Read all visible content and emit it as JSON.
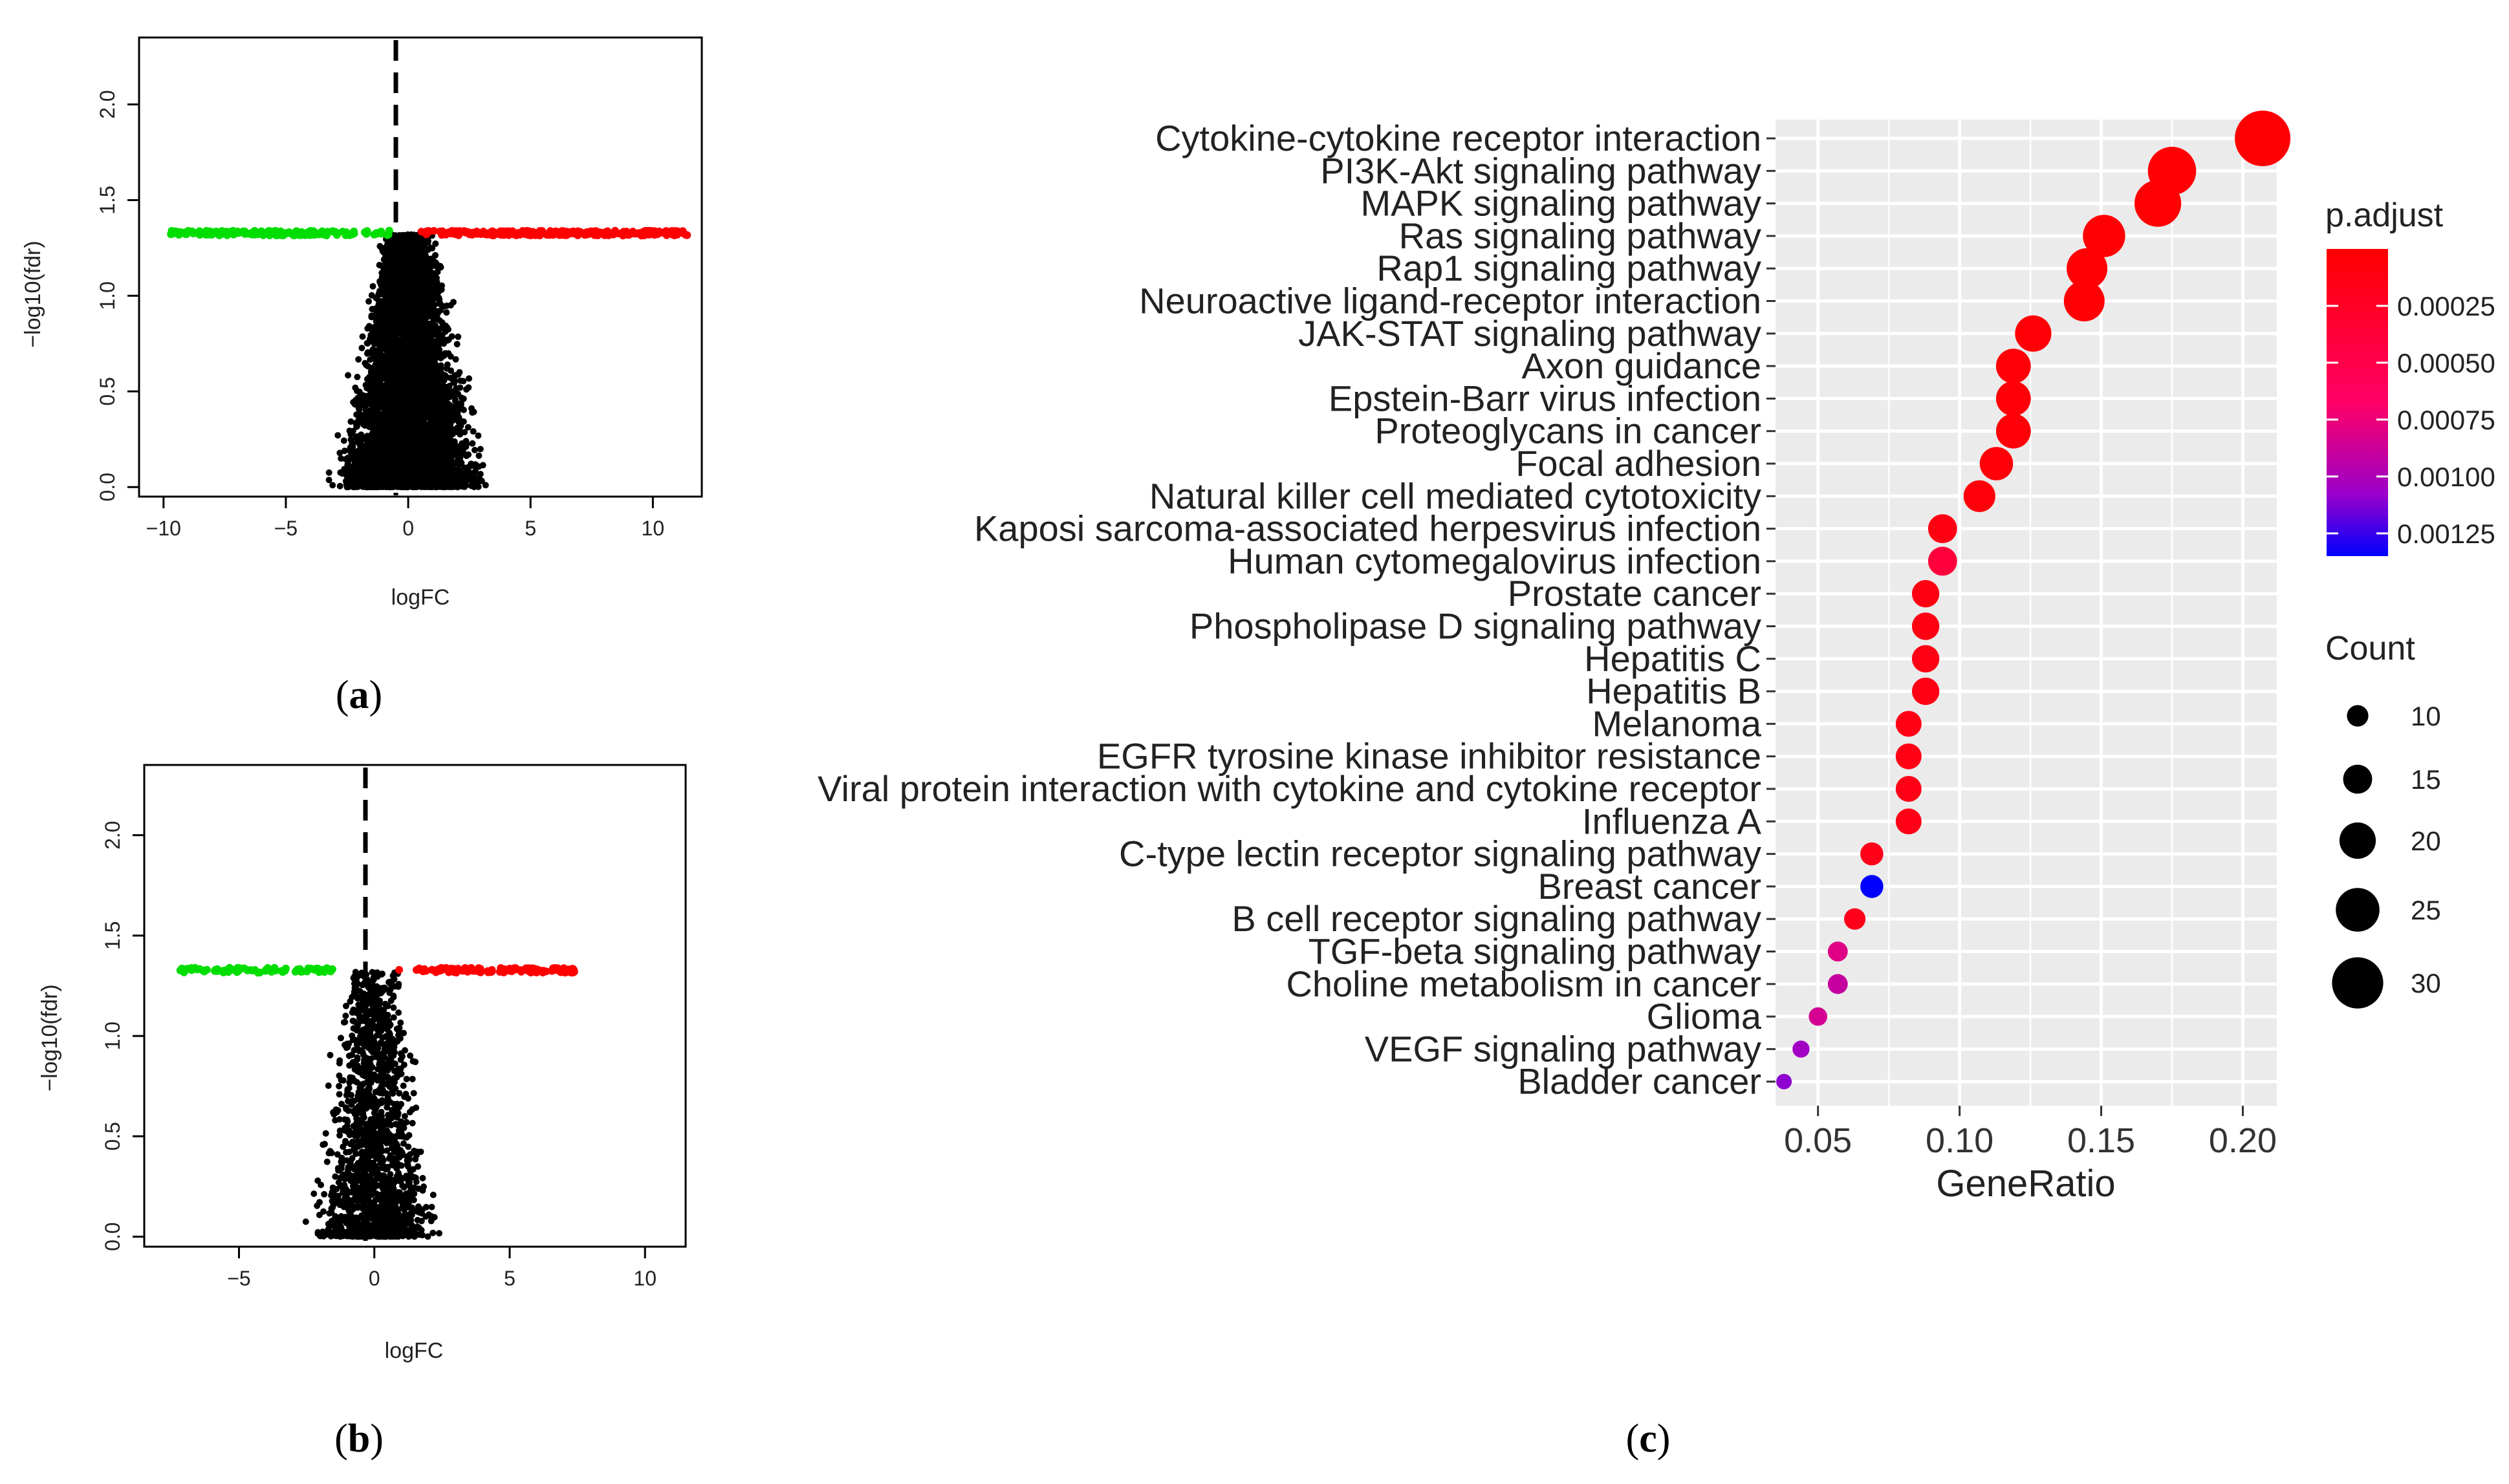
{
  "panels": [
    {
      "id": "a",
      "label_open": "(",
      "label_letter": "a",
      "label_close": ")"
    },
    {
      "id": "b",
      "label_open": "(",
      "label_letter": "b",
      "label_close": ")"
    },
    {
      "id": "c",
      "label_open": "(",
      "label_letter": "c",
      "label_close": ")"
    }
  ],
  "colors": {
    "up": "#ff0000",
    "down": "#00dd00",
    "ns": "#000000",
    "panel_bg": "#ebebeb",
    "grid": "#ffffff",
    "p_low": "#ff0000",
    "p_high": "#0000ff"
  },
  "chart_data": [
    {
      "type": "scatter",
      "panel": "a",
      "title": "",
      "xlabel": "logFC",
      "ylabel": "−log10(fdr)",
      "xlim": [
        -11,
        12
      ],
      "ylim": [
        -0.05,
        2.35
      ],
      "xticks": [
        -10,
        -5,
        0,
        5,
        10
      ],
      "xtick_labels": [
        "−10",
        "−5",
        "0",
        "5",
        "10"
      ],
      "yticks": [
        0,
        0.5,
        1,
        1.5,
        2
      ],
      "ytick_labels": [
        "0.0",
        "0.5",
        "1.0",
        "1.5",
        "2.0"
      ],
      "cutoff_x": 0,
      "sig_level": 1.34,
      "down_range": [
        -9.7,
        -0.5
      ],
      "up_range": [
        0.5,
        11.4
      ],
      "ns_spread": 9.8,
      "ns_points": 5200,
      "sig_points_down": 170,
      "sig_points_up": 260,
      "series": [
        {
          "name": "down-regulated",
          "color": "#00dd00"
        },
        {
          "name": "up-regulated",
          "color": "#ff0000"
        },
        {
          "name": "not significant",
          "color": "#000000"
        }
      ]
    },
    {
      "type": "scatter",
      "panel": "b",
      "title": "",
      "xlabel": "logFC",
      "ylabel": "−log10(fdr)",
      "xlim": [
        -8.5,
        11.5
      ],
      "ylim": [
        -0.05,
        2.35
      ],
      "xticks": [
        -5,
        0,
        5,
        10
      ],
      "xtick_labels": [
        "−5",
        "0",
        "5",
        "10"
      ],
      "yticks": [
        0,
        0.5,
        1,
        1.5,
        2
      ],
      "ytick_labels": [
        "0.0",
        "0.5",
        "1.0",
        "1.5",
        "2.0"
      ],
      "cutoff_x": 0,
      "sig_level": 1.34,
      "down_range": [
        -7.2,
        -0.7
      ],
      "up_range": [
        0.8,
        7.4
      ],
      "ns_spread": 7.6,
      "ns_points": 1500,
      "sig_points_down": 80,
      "sig_points_up": 110,
      "series": [
        {
          "name": "down-regulated",
          "color": "#00dd00"
        },
        {
          "name": "up-regulated",
          "color": "#ff0000"
        },
        {
          "name": "not significant",
          "color": "#000000"
        }
      ]
    },
    {
      "type": "scatter",
      "panel": "c",
      "title": "",
      "xlabel": "GeneRatio",
      "ylabel": "",
      "xlim": [
        0.035,
        0.212
      ],
      "xticks": [
        0.05,
        0.1,
        0.15,
        0.2
      ],
      "xtick_labels": [
        "0.05",
        "0.10",
        "0.15",
        "0.20"
      ],
      "categories": [
        "Cytokine-cytokine receptor interaction",
        "PI3K-Akt signaling pathway",
        "MAPK signaling pathway",
        "Ras signaling pathway",
        "Rap1 signaling pathway",
        "Neuroactive ligand-receptor interaction",
        "JAK-STAT signaling pathway",
        "Axon guidance",
        "Epstein-Barr virus infection",
        "Proteoglycans in cancer",
        "Focal adhesion",
        "Natural killer cell mediated cytotoxicity",
        "Kaposi sarcoma-associated herpesvirus infection",
        "Human cytomegalovirus infection",
        "Prostate cancer",
        "Phospholipase D signaling pathway",
        "Hepatitis C",
        "Hepatitis B",
        "Melanoma",
        "EGFR tyrosine kinase inhibitor resistance",
        "Viral protein interaction with cytokine and cytokine receptor",
        "Influenza A",
        "C-type lectin receptor signaling pathway",
        "Breast cancer",
        "B cell receptor signaling pathway",
        "TGF-beta signaling pathway",
        "Choline metabolism in cancer",
        "Glioma",
        "VEGF signaling pathway",
        "Bladder cancer"
      ],
      "gene_ratio": [
        0.207,
        0.175,
        0.17,
        0.151,
        0.145,
        0.144,
        0.126,
        0.119,
        0.119,
        0.119,
        0.113,
        0.107,
        0.094,
        0.094,
        0.088,
        0.088,
        0.088,
        0.088,
        0.082,
        0.082,
        0.082,
        0.082,
        0.069,
        0.069,
        0.063,
        0.057,
        0.057,
        0.05,
        0.044,
        0.038
      ],
      "count": [
        33,
        28,
        27,
        24,
        23,
        23,
        20,
        19,
        19,
        19,
        18,
        17,
        15,
        15,
        14,
        14,
        14,
        14,
        13,
        13,
        13,
        13,
        11,
        11,
        10,
        9,
        9,
        8,
        7,
        6
      ],
      "p_adjust": [
        1e-05,
        2e-05,
        2e-05,
        3e-05,
        3e-05,
        3e-05,
        4e-05,
        5e-05,
        5e-05,
        5e-05,
        6e-05,
        7e-05,
        0.00012,
        0.0004,
        0.00012,
        0.00012,
        0.00013,
        0.00013,
        0.00014,
        0.00014,
        0.00015,
        0.00015,
        0.00016,
        0.00135,
        0.00018,
        0.0008,
        0.0009,
        0.00085,
        0.00105,
        0.0011
      ],
      "legend_color": {
        "title": "p.adjust",
        "range": [
          0.0,
          0.00135
        ],
        "ticks": [
          0.00025,
          0.0005,
          0.00075,
          0.001,
          0.00125
        ],
        "tick_labels": [
          "0.00025",
          "0.00050",
          "0.00075",
          "0.00100",
          "0.00125"
        ]
      },
      "legend_size": {
        "title": "Count",
        "values": [
          10,
          15,
          20,
          25,
          30
        ],
        "labels": [
          "10",
          "15",
          "20",
          "25",
          "30"
        ]
      }
    }
  ]
}
